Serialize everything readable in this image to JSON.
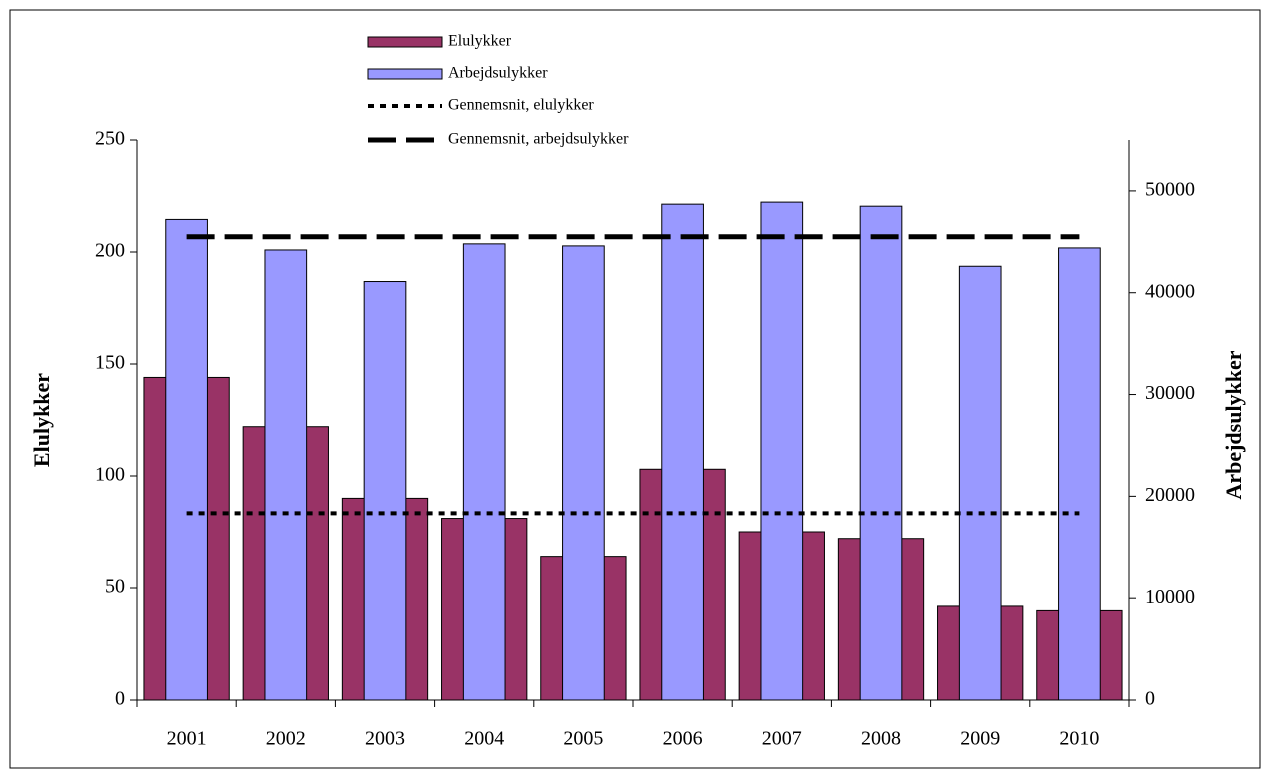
{
  "chart_data": {
    "type": "bar",
    "categories": [
      "2001",
      "2002",
      "2003",
      "2004",
      "2005",
      "2006",
      "2007",
      "2008",
      "2009",
      "2010"
    ],
    "series": [
      {
        "name": "Elulykker",
        "color": "#993366",
        "axis": "y",
        "values": [
          144,
          122,
          90,
          81,
          64,
          103,
          75,
          72,
          42,
          40
        ]
      },
      {
        "name": "Arbejdsulykker",
        "color": "#9999ff",
        "axis": "y2",
        "values": [
          47200,
          44200,
          41100,
          44800,
          44600,
          48700,
          48900,
          48500,
          42600,
          44400
        ]
      }
    ],
    "averages": [
      {
        "name": "Gennemsnit, elulykker",
        "value": 83.3,
        "axis": "y",
        "color": "#000000",
        "style": "dotted"
      },
      {
        "name": "Gennemsnit, arbejdsulykker",
        "value": 45500,
        "axis": "y2",
        "color": "#000000",
        "style": "dashed"
      }
    ],
    "ylabel": "Elulykker",
    "y2label": "Arbejdsulykker",
    "ylim": [
      0,
      250
    ],
    "yticks": [
      0,
      50,
      100,
      150,
      200,
      250
    ],
    "y2lim": [
      0,
      55000
    ],
    "y2ticks": [
      0,
      10000,
      20000,
      30000,
      40000,
      50000
    ],
    "legend": "top"
  }
}
